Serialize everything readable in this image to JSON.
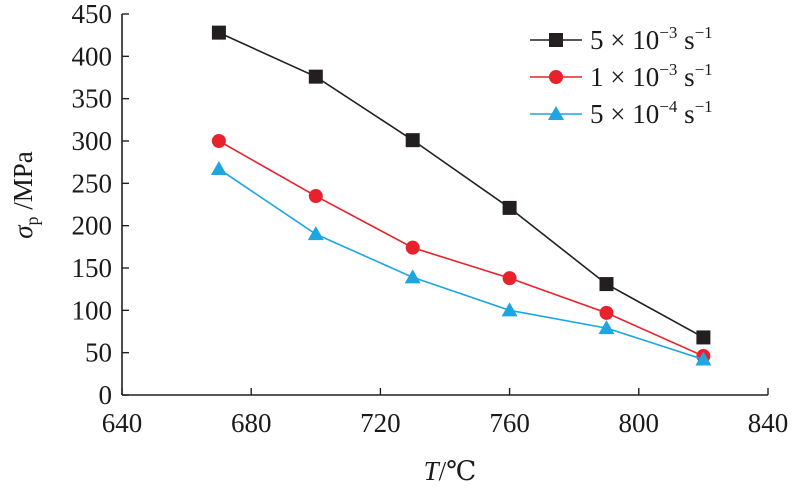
{
  "chart_data": {
    "type": "line",
    "title": "",
    "xlabel": "T/℃",
    "ylabel": "σp /MPa",
    "xlim": [
      640,
      840
    ],
    "ylim": [
      0,
      450
    ],
    "xticks": [
      640,
      680,
      720,
      760,
      800,
      840
    ],
    "yticks": [
      0,
      50,
      100,
      150,
      200,
      250,
      300,
      350,
      400,
      450
    ],
    "grid": false,
    "legend_position": "top-right",
    "series": [
      {
        "name": "5×10⁻³ s⁻¹",
        "marker": "square",
        "color": "#231f20",
        "x": [
          670,
          700,
          730,
          760,
          790,
          820
        ],
        "values": [
          428,
          376,
          301,
          221,
          131,
          68
        ]
      },
      {
        "name": "1×10⁻³ s⁻¹",
        "marker": "circle",
        "color": "#e8222c",
        "x": [
          670,
          700,
          730,
          760,
          790,
          820
        ],
        "values": [
          300,
          235,
          174,
          138,
          97,
          46
        ]
      },
      {
        "name": "5×10⁻⁴ s⁻¹",
        "marker": "triangle",
        "color": "#1ea6e0",
        "x": [
          670,
          700,
          730,
          760,
          790,
          820
        ],
        "values": [
          267,
          190,
          139,
          100,
          79,
          42
        ]
      }
    ],
    "legend": {
      "entries": [
        {
          "base": "5",
          "times": "×",
          "ten": "10",
          "exp": "−3",
          "unit": "s",
          "unit_exp": "−1"
        },
        {
          "base": "1",
          "times": "×",
          "ten": "10",
          "exp": "−3",
          "unit": "s",
          "unit_exp": "−1"
        },
        {
          "base": "5",
          "times": "×",
          "ten": "10",
          "exp": "−4",
          "unit": "s",
          "unit_exp": "−1"
        }
      ]
    },
    "axis_titles": {
      "x_var": "T",
      "x_unit": "/℃",
      "y_var": "σ",
      "y_sub": "p",
      "y_unit": " /MPa"
    }
  }
}
